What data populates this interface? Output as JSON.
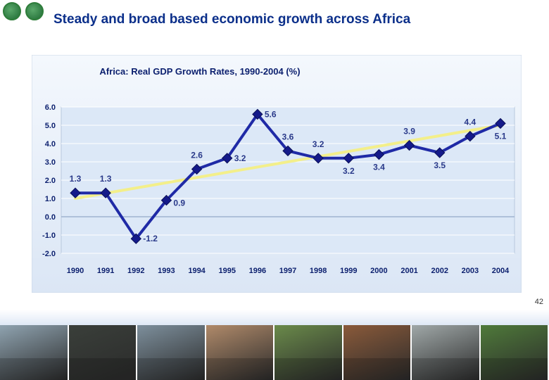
{
  "slide": {
    "title": "Steady and broad based economic growth across Africa",
    "page_number": "42"
  },
  "chart_data": {
    "type": "line",
    "title": "Africa: Real GDP Growth Rates, 1990-2004 (%)",
    "xlabel": "",
    "ylabel": "",
    "categories": [
      "1990",
      "1991",
      "1992",
      "1993",
      "1994",
      "1995",
      "1996",
      "1997",
      "1998",
      "1999",
      "2000",
      "2001",
      "2002",
      "2003",
      "2004"
    ],
    "series": [
      {
        "values": [
          1.3,
          1.3,
          -1.2,
          0.9,
          2.6,
          3.2,
          5.6,
          3.6,
          3.2,
          3.2,
          3.4,
          3.9,
          3.5,
          4.4,
          5.1
        ],
        "color": "#1f2aa6"
      }
    ],
    "data_labels": [
      "1.3",
      "1.3",
      "-1.2",
      "0.9",
      "2.6",
      "3.2",
      "5.6",
      "3.6",
      "3.2",
      "3.2",
      "3.4",
      "3.9",
      "3.5",
      "4.4",
      "5.1"
    ],
    "trendline": {
      "start": 1.0,
      "end": 5.0,
      "color": "#f3ef8a"
    },
    "ylim": [
      -2.0,
      6.0
    ],
    "yticks": [
      "-2.0",
      "-1.0",
      "0.0",
      "1.0",
      "2.0",
      "3.0",
      "4.0",
      "5.0",
      "6.0"
    ],
    "grid": true,
    "legend": "none",
    "colors": {
      "series": "#1f2aa6",
      "background": "#dce8f7",
      "gridline": "#ffffff",
      "axis_text": "#0b1f6e"
    }
  },
  "photos": [
    {
      "name": "headquarters-building",
      "color": "#8fa3b0"
    },
    {
      "name": "classroom-blackboard",
      "color": "#3a3f3a"
    },
    {
      "name": "ship-in-port",
      "color": "#7d8f9c"
    },
    {
      "name": "schoolchildren",
      "color": "#b08a6a"
    },
    {
      "name": "landscape-road",
      "color": "#6a8a4a"
    },
    {
      "name": "market-vendor",
      "color": "#8a5a3a"
    },
    {
      "name": "salt-flats",
      "color": "#a0a8a8"
    },
    {
      "name": "farm-workers",
      "color": "#4f7a3a"
    }
  ]
}
